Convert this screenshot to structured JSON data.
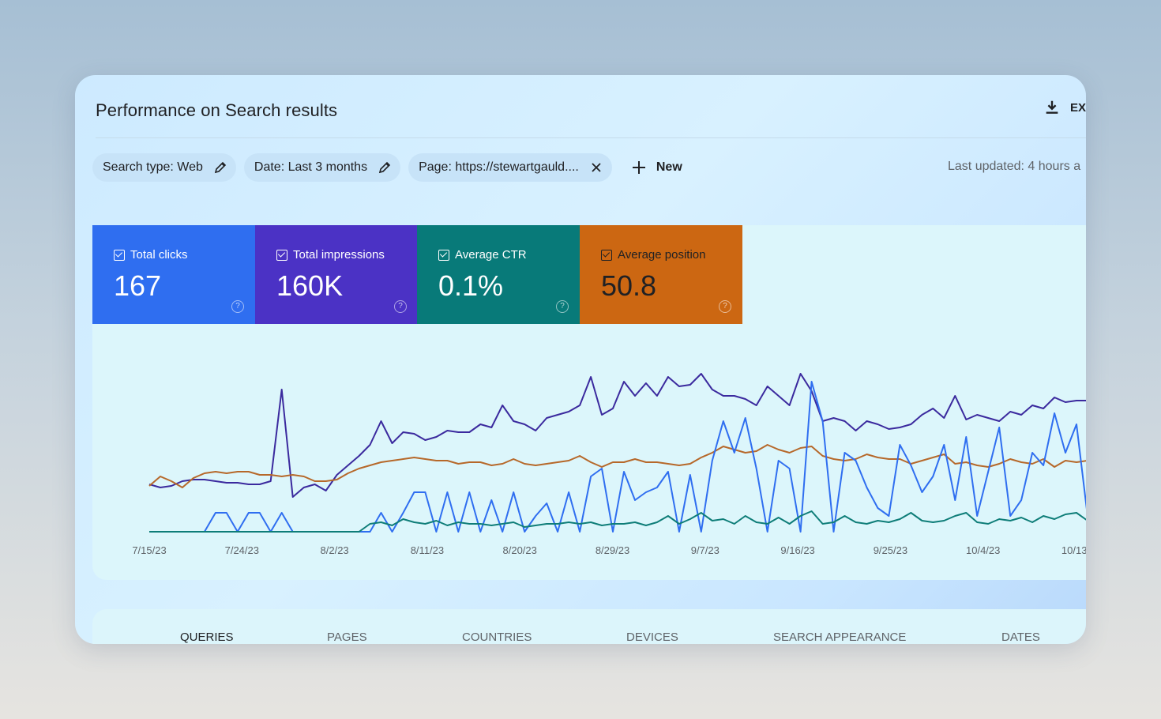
{
  "header": {
    "title": "Performance on Search results",
    "export_label": "EX"
  },
  "filters": [
    {
      "label": "Search type: Web",
      "icon": "pencil-icon"
    },
    {
      "label": "Date: Last 3 months",
      "icon": "pencil-icon"
    },
    {
      "label": "Page: https://stewartgauld....",
      "icon": "close-icon"
    }
  ],
  "new_label": "New",
  "last_updated": "Last updated: 4 hours a",
  "metrics": [
    {
      "label": "Total clicks",
      "value": "167",
      "color": "#2f6ef0",
      "checked": true
    },
    {
      "label": "Total impressions",
      "value": "160K",
      "color": "#4b32c5",
      "checked": true
    },
    {
      "label": "Average CTR",
      "value": "0.1%",
      "color": "#087a79",
      "checked": true
    },
    {
      "label": "Average position",
      "value": "50.8",
      "color": "#cc6712",
      "checked": true
    }
  ],
  "chart_data": {
    "type": "line",
    "x_tick_labels": [
      "7/15/23",
      "7/24/23",
      "8/2/23",
      "8/11/23",
      "8/20/23",
      "8/29/23",
      "9/7/23",
      "9/16/23",
      "9/25/23",
      "10/4/23",
      "10/13/"
    ],
    "series": [
      {
        "color": "#3b2a9e",
        "values": [
          0.3,
          0.28,
          0.29,
          0.32,
          0.33,
          0.33,
          0.32,
          0.31,
          0.31,
          0.3,
          0.3,
          0.32,
          0.9,
          0.22,
          0.28,
          0.3,
          0.26,
          0.36,
          0.42,
          0.48,
          0.55,
          0.7,
          0.56,
          0.63,
          0.62,
          0.58,
          0.6,
          0.64,
          0.63,
          0.63,
          0.68,
          0.66,
          0.8,
          0.7,
          0.68,
          0.64,
          0.72,
          0.74,
          0.76,
          0.8,
          0.98,
          0.74,
          0.78,
          0.95,
          0.86,
          0.94,
          0.86,
          0.98,
          0.92,
          0.93,
          1.0,
          0.9,
          0.86,
          0.86,
          0.84,
          0.8,
          0.92,
          0.86,
          0.8,
          1.0,
          0.89,
          0.7,
          0.72,
          0.7,
          0.64,
          0.7,
          0.68,
          0.65,
          0.66,
          0.68,
          0.74,
          0.78,
          0.72,
          0.86,
          0.71,
          0.74,
          0.72,
          0.7,
          0.76,
          0.74,
          0.8,
          0.78,
          0.85,
          0.82,
          0.83,
          0.83
        ]
      },
      {
        "color": "#b6682a",
        "values": [
          0.29,
          0.35,
          0.32,
          0.28,
          0.34,
          0.37,
          0.38,
          0.37,
          0.38,
          0.38,
          0.36,
          0.36,
          0.35,
          0.36,
          0.35,
          0.32,
          0.32,
          0.33,
          0.37,
          0.4,
          0.42,
          0.44,
          0.45,
          0.46,
          0.47,
          0.46,
          0.45,
          0.45,
          0.43,
          0.44,
          0.44,
          0.42,
          0.43,
          0.46,
          0.43,
          0.42,
          0.43,
          0.44,
          0.45,
          0.48,
          0.44,
          0.41,
          0.44,
          0.44,
          0.46,
          0.44,
          0.44,
          0.43,
          0.42,
          0.43,
          0.47,
          0.5,
          0.54,
          0.52,
          0.5,
          0.51,
          0.55,
          0.52,
          0.5,
          0.53,
          0.54,
          0.48,
          0.46,
          0.45,
          0.46,
          0.49,
          0.47,
          0.46,
          0.46,
          0.43,
          0.45,
          0.47,
          0.49,
          0.43,
          0.44,
          0.42,
          0.41,
          0.43,
          0.46,
          0.44,
          0.43,
          0.46,
          0.41,
          0.45,
          0.44,
          0.45
        ]
      },
      {
        "color": "#2f6ef0",
        "values": [
          0,
          0,
          0,
          0,
          0,
          0,
          0.12,
          0.12,
          0,
          0.12,
          0.12,
          0,
          0.12,
          0,
          0,
          0,
          0,
          0,
          0,
          0,
          0,
          0.12,
          0,
          0.12,
          0.25,
          0.25,
          0,
          0.25,
          0,
          0.25,
          0,
          0.2,
          0,
          0.25,
          0,
          0.1,
          0.18,
          0,
          0.25,
          0,
          0.35,
          0.4,
          0,
          0.38,
          0.2,
          0.25,
          0.28,
          0.38,
          0,
          0.36,
          0,
          0.45,
          0.7,
          0.5,
          0.72,
          0.4,
          0,
          0.45,
          0.4,
          0,
          0.95,
          0.7,
          0,
          0.5,
          0.45,
          0.28,
          0.15,
          0.1,
          0.55,
          0.42,
          0.25,
          0.35,
          0.55,
          0.2,
          0.6,
          0.1,
          0.38,
          0.66,
          0.1,
          0.2,
          0.5,
          0.42,
          0.75,
          0.5,
          0.68,
          0.1,
          0.1
        ]
      },
      {
        "color": "#0e7d78",
        "values": [
          0,
          0,
          0,
          0,
          0,
          0,
          0,
          0,
          0,
          0,
          0,
          0,
          0,
          0,
          0,
          0,
          0,
          0,
          0,
          0,
          0.05,
          0.06,
          0.04,
          0.08,
          0.06,
          0.05,
          0.07,
          0.04,
          0.06,
          0.05,
          0.05,
          0.04,
          0.05,
          0.06,
          0.03,
          0.04,
          0.05,
          0.05,
          0.06,
          0.05,
          0.06,
          0.04,
          0.05,
          0.05,
          0.06,
          0.04,
          0.06,
          0.1,
          0.05,
          0.08,
          0.12,
          0.07,
          0.08,
          0.05,
          0.1,
          0.06,
          0.05,
          0.09,
          0.05,
          0.1,
          0.13,
          0.05,
          0.06,
          0.1,
          0.06,
          0.05,
          0.07,
          0.06,
          0.08,
          0.12,
          0.07,
          0.06,
          0.07,
          0.1,
          0.12,
          0.06,
          0.05,
          0.08,
          0.07,
          0.09,
          0.06,
          0.1,
          0.08,
          0.11,
          0.12,
          0.07,
          0.06
        ]
      }
    ]
  },
  "tabs": [
    {
      "label": "QUERIES",
      "active": true
    },
    {
      "label": "PAGES",
      "active": false
    },
    {
      "label": "COUNTRIES",
      "active": false
    },
    {
      "label": "DEVICES",
      "active": false
    },
    {
      "label": "SEARCH APPEARANCE",
      "active": false
    },
    {
      "label": "DATES",
      "active": false
    }
  ]
}
